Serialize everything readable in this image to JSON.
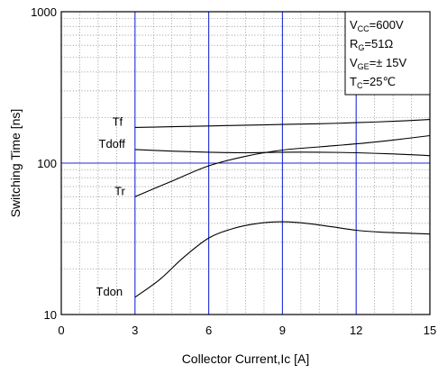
{
  "chart_data": {
    "type": "line",
    "title": "",
    "xlabel": "Collector Current,Ic [A]",
    "ylabel": "Switching Time [ns]",
    "xlim": [
      0,
      15
    ],
    "ylim": [
      10,
      1000
    ],
    "yscale": "log",
    "x_ticks": [
      0,
      3,
      6,
      9,
      12,
      15
    ],
    "x_tick_labels": [
      "0",
      "3",
      "6",
      "9",
      "12",
      "15"
    ],
    "y_ticks": [
      10,
      100,
      1000
    ],
    "y_tick_labels": [
      "10",
      "100",
      "1000"
    ],
    "grid": true,
    "legend": "none",
    "conditions": [
      {
        "main": "V",
        "sub": "CC",
        "rest": "=600V"
      },
      {
        "main": "R",
        "sub": "G",
        "rest": "=51Ω"
      },
      {
        "main": "V",
        "sub": "GE",
        "rest": "=±  15V"
      },
      {
        "main": "T",
        "sub": "C",
        "rest": "=25℃"
      }
    ],
    "series": [
      {
        "name": "Tf",
        "label_at": 2.5,
        "x": [
          3,
          4.5,
          6,
          7.5,
          9,
          10.5,
          12,
          13.5,
          15
        ],
        "y": [
          172,
          174,
          176,
          178,
          180,
          182,
          185,
          189,
          194
        ]
      },
      {
        "name": "Tdoff",
        "label_at": 2.6,
        "x": [
          3,
          4.5,
          6,
          7.5,
          9,
          10.5,
          12,
          13.5,
          15
        ],
        "y": [
          123,
          120,
          118,
          117,
          118,
          118,
          117,
          115,
          112
        ]
      },
      {
        "name": "Tr",
        "label_at": 2.6,
        "x": [
          3,
          4.5,
          6,
          7.5,
          9,
          10.5,
          12,
          13.5,
          15
        ],
        "y": [
          60,
          76,
          96,
          111,
          122,
          128,
          134,
          142,
          152
        ]
      },
      {
        "name": "Tdon",
        "label_at": 2.5,
        "x": [
          3,
          4,
          5,
          6,
          7,
          8,
          9,
          10,
          11,
          12,
          13,
          14,
          15
        ],
        "y": [
          13,
          17,
          24,
          32,
          37,
          40,
          41,
          40,
          38,
          36,
          35,
          34.5,
          34
        ]
      }
    ]
  }
}
